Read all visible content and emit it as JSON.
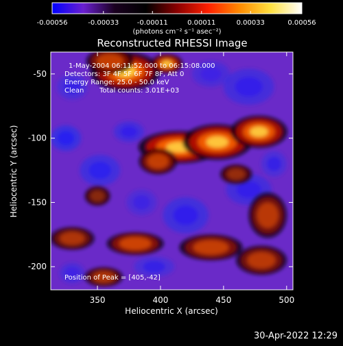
{
  "chart_data": {
    "type": "heatmap",
    "title": "Reconstructed RHESSI Image",
    "xlabel": "Heliocentric X (arcsec)",
    "ylabel": "Heliocentric Y (arcsec)",
    "x_ticks": [
      "350",
      "400",
      "450",
      "500"
    ],
    "x_tick_values": [
      350,
      400,
      450,
      500
    ],
    "y_ticks": [
      "-50",
      "-100",
      "-150",
      "-200"
    ],
    "y_tick_values": [
      -50,
      -100,
      -150,
      -200
    ],
    "xlim": [
      313,
      505
    ],
    "ylim": [
      -218,
      -33
    ],
    "colorbar": {
      "ticks": [
        "-0.00056",
        "-0.00033",
        "-0.00011",
        "0.00011",
        "0.00033",
        "0.00056"
      ],
      "tick_values": [
        -0.00056,
        -0.00033,
        -0.00011,
        0.00011,
        0.00033,
        0.00056
      ],
      "range": [
        -0.00056,
        0.00056
      ],
      "unit_label": "(photons cm⁻² s⁻¹ asec⁻²)",
      "colors": [
        "#0000ff",
        "#6a1fd0",
        "#1a0020",
        "#000000",
        "#8a0000",
        "#ff2000",
        "#ff8a00",
        "#ffe040",
        "#ffffff"
      ]
    },
    "annotations": {
      "time": "1-May-2004 06:11:52.000 to 06:15:08.000",
      "detectors": "Detectors: 3F 4F 5F 6F 7F 8F, Att 0",
      "energy": "Energy Range: 25.0 - 50.0 keV",
      "clean": "Clean",
      "counts": "Total counts: 3.01E+03",
      "peak": "Position of Peak = [405,-42]"
    },
    "peak_position": [
      405,
      -42
    ],
    "emission_sources": [
      {
        "x": 372,
        "y": -48,
        "sx": 22,
        "sy": 12,
        "a": 0.85
      },
      {
        "x": 360,
        "y": -40,
        "sx": 15,
        "sy": 8,
        "a": 0.6
      },
      {
        "x": 405,
        "y": -42,
        "sx": 10,
        "sy": 6,
        "a": 0.75
      },
      {
        "x": 415,
        "y": -107,
        "sx": 26,
        "sy": 10,
        "a": 0.95
      },
      {
        "x": 445,
        "y": -103,
        "sx": 22,
        "sy": 11,
        "a": 0.9
      },
      {
        "x": 478,
        "y": -95,
        "sx": 18,
        "sy": 10,
        "a": 0.85
      },
      {
        "x": 398,
        "y": -118,
        "sx": 12,
        "sy": 8,
        "a": 0.6
      },
      {
        "x": 485,
        "y": -160,
        "sx": 12,
        "sy": 14,
        "a": 0.55
      },
      {
        "x": 330,
        "y": -178,
        "sx": 14,
        "sy": 7,
        "a": 0.5
      },
      {
        "x": 380,
        "y": -182,
        "sx": 18,
        "sy": 7,
        "a": 0.65
      },
      {
        "x": 440,
        "y": -185,
        "sx": 20,
        "sy": 8,
        "a": 0.6
      },
      {
        "x": 480,
        "y": -195,
        "sx": 16,
        "sy": 9,
        "a": 0.55
      },
      {
        "x": 355,
        "y": -208,
        "sx": 12,
        "sy": 6,
        "a": 0.5
      },
      {
        "x": 350,
        "y": -145,
        "sx": 8,
        "sy": 6,
        "a": 0.35
      },
      {
        "x": 460,
        "y": -128,
        "sx": 10,
        "sy": 6,
        "a": 0.4
      }
    ],
    "negative_sources": [
      {
        "x": 325,
        "y": -100,
        "sx": 12,
        "sy": 10,
        "a": 0.9
      },
      {
        "x": 352,
        "y": -125,
        "sx": 16,
        "sy": 12,
        "a": 0.8
      },
      {
        "x": 375,
        "y": -95,
        "sx": 12,
        "sy": 8,
        "a": 0.7
      },
      {
        "x": 420,
        "y": -160,
        "sx": 18,
        "sy": 14,
        "a": 0.75
      },
      {
        "x": 470,
        "y": -140,
        "sx": 18,
        "sy": 12,
        "a": 0.7
      },
      {
        "x": 490,
        "y": -120,
        "sx": 10,
        "sy": 10,
        "a": 0.6
      },
      {
        "x": 470,
        "y": -60,
        "sx": 20,
        "sy": 14,
        "a": 0.7
      },
      {
        "x": 440,
        "y": -50,
        "sx": 15,
        "sy": 10,
        "a": 0.55
      },
      {
        "x": 330,
        "y": -60,
        "sx": 12,
        "sy": 10,
        "a": 0.6
      },
      {
        "x": 395,
        "y": -200,
        "sx": 16,
        "sy": 8,
        "a": 0.6
      },
      {
        "x": 330,
        "y": -205,
        "sx": 10,
        "sy": 8,
        "a": 0.55
      },
      {
        "x": 385,
        "y": -150,
        "sx": 12,
        "sy": 10,
        "a": 0.5
      }
    ]
  },
  "timestamp": "30-Apr-2022 12:29"
}
